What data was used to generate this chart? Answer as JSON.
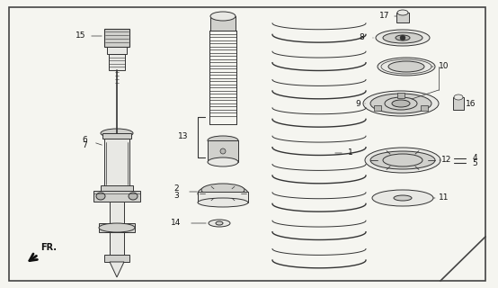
{
  "bg_color": "#f5f5f0",
  "border_color": "#444444",
  "line_color": "#333333",
  "fill_light": "#e8e8e4",
  "fill_mid": "#d0d0cc",
  "fill_dark": "#b8b8b4"
}
